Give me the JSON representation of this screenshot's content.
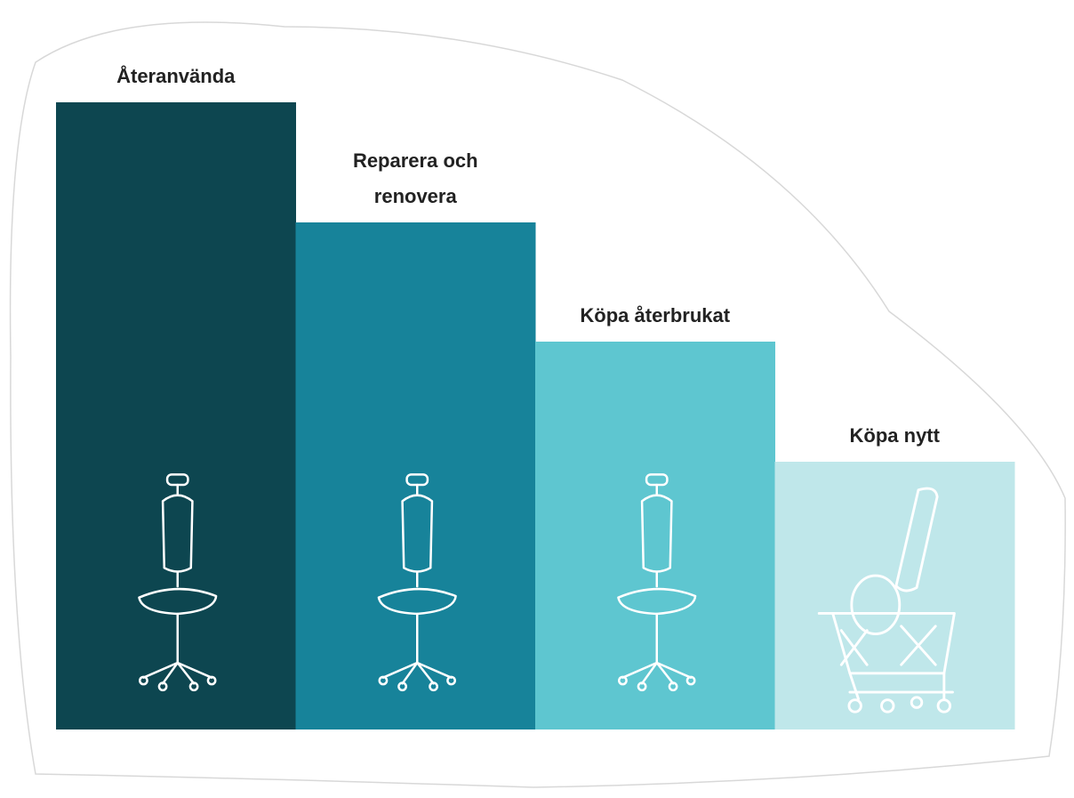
{
  "steps": [
    {
      "label": [
        "Återanvända"
      ],
      "color": "#0d4650"
    },
    {
      "label": [
        "Reparera och",
        "renovera"
      ],
      "color": "#17839a"
    },
    {
      "label": [
        "Köpa återbrukat"
      ],
      "color": "#5ec6d0"
    },
    {
      "label": [
        "Köpa nytt"
      ],
      "color": "#bfe7ea"
    }
  ]
}
